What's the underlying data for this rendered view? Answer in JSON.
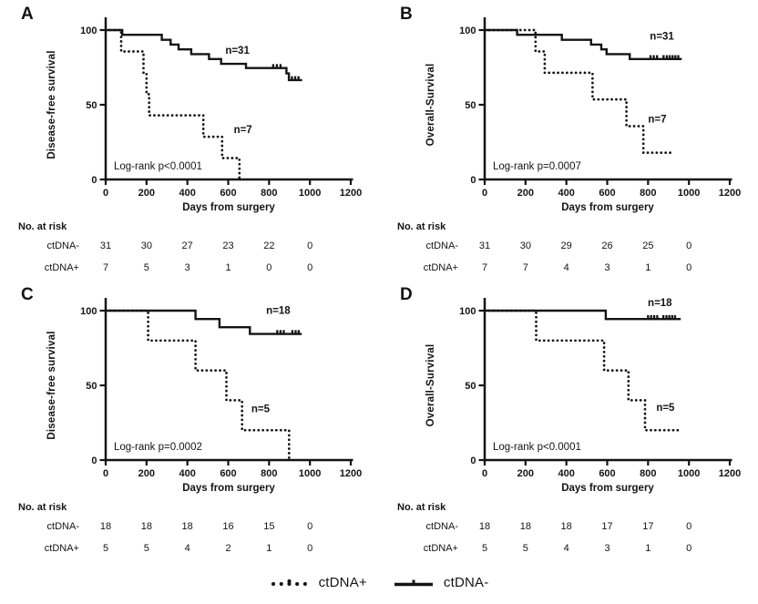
{
  "figure": {
    "background": "#ffffff",
    "ink": "#141414"
  },
  "legend": {
    "items": [
      {
        "symbol": "dotted-line",
        "label": "ctDNA+"
      },
      {
        "symbol": "solid-line",
        "label": "ctDNA-"
      }
    ]
  },
  "chart_data": {
    "type": "line",
    "subtype": "kaplan-meier-step",
    "xlabel": "Days from surgery",
    "x_ticks": [
      0,
      200,
      400,
      600,
      800,
      1000,
      1200
    ],
    "y_ticks": [
      0,
      50,
      100
    ],
    "xlim": [
      0,
      1200
    ],
    "ylim": [
      0,
      100
    ],
    "grid": false,
    "panels": [
      {
        "letter": "A",
        "ylabel": "Disease-free survival",
        "logrank": "Log-rank p<0.0001",
        "series": [
          {
            "name": "ctDNA-",
            "style": "solid",
            "n_label": "n=31",
            "n_label_at": [
              645,
              84
            ],
            "points": [
              [
                0,
                100
              ],
              [
                81,
                100
              ],
              [
                81,
                96.8
              ],
              [
                275,
                96.8
              ],
              [
                275,
                93.5
              ],
              [
                318,
                93.5
              ],
              [
                318,
                90.3
              ],
              [
                357,
                90.3
              ],
              [
                357,
                87.1
              ],
              [
                419,
                87.1
              ],
              [
                419,
                83.9
              ],
              [
                506,
                83.9
              ],
              [
                506,
                80.6
              ],
              [
                565,
                80.6
              ],
              [
                565,
                77.4
              ],
              [
                687,
                77.4
              ],
              [
                687,
                74.6
              ],
              [
                885,
                74.6
              ],
              [
                885,
                71
              ],
              [
                897,
                71
              ],
              [
                897,
                66.5
              ],
              [
                962,
                66.5
              ]
            ],
            "censors": [
              820,
              838,
              856,
              912,
              928,
              944
            ]
          },
          {
            "name": "ctDNA+",
            "style": "dotted",
            "n_label": "n=7",
            "n_label_at": [
              672,
              31
            ],
            "points": [
              [
                0,
                100
              ],
              [
                76,
                100
              ],
              [
                76,
                85.7
              ],
              [
                185,
                85.7
              ],
              [
                185,
                71.4
              ],
              [
                200,
                71.4
              ],
              [
                200,
                57.1
              ],
              [
                213,
                57.1
              ],
              [
                213,
                42.9
              ],
              [
                478,
                42.9
              ],
              [
                478,
                28.6
              ],
              [
                570,
                28.6
              ],
              [
                570,
                14.3
              ],
              [
                655,
                14.3
              ],
              [
                655,
                0
              ]
            ],
            "censors": []
          }
        ],
        "risk_table": {
          "header": "No. at risk",
          "time_points": [
            0,
            200,
            400,
            600,
            800,
            1000
          ],
          "rows": [
            {
              "label": "ctDNA-",
              "values": [
                "31",
                "30",
                "27",
                "23",
                "22",
                "0"
              ]
            },
            {
              "label": "ctDNA+",
              "values": [
                "7",
                "5",
                "3",
                "1",
                "0",
                "0"
              ]
            }
          ]
        }
      },
      {
        "letter": "B",
        "ylabel": "Overall-Survival",
        "logrank": "Log-rank p=0.0007",
        "series": [
          {
            "name": "ctDNA-",
            "style": "solid",
            "n_label": "n=31",
            "n_label_at": [
              868,
              93.5
            ],
            "points": [
              [
                0,
                100
              ],
              [
                159,
                100
              ],
              [
                159,
                96.8
              ],
              [
                378,
                96.8
              ],
              [
                378,
                93.5
              ],
              [
                521,
                93.5
              ],
              [
                521,
                90.3
              ],
              [
                571,
                90.3
              ],
              [
                571,
                87.1
              ],
              [
                597,
                87.1
              ],
              [
                597,
                83.9
              ],
              [
                710,
                83.9
              ],
              [
                710,
                80.6
              ],
              [
                965,
                80.6
              ]
            ],
            "censors": [
              812,
              828,
              844,
              876,
              892,
              906,
              920,
              934,
              948
            ]
          },
          {
            "name": "ctDNA+",
            "style": "dotted",
            "n_label": "n=7",
            "n_label_at": [
              845,
              38
            ],
            "points": [
              [
                0,
                100
              ],
              [
                249,
                100
              ],
              [
                249,
                85.7
              ],
              [
                294,
                85.7
              ],
              [
                294,
                71.4
              ],
              [
                528,
                71.4
              ],
              [
                528,
                53.6
              ],
              [
                694,
                53.6
              ],
              [
                694,
                35.7
              ],
              [
                777,
                35.7
              ],
              [
                777,
                17.9
              ],
              [
                925,
                17.9
              ]
            ],
            "censors": []
          }
        ],
        "risk_table": {
          "header": "No. at risk",
          "time_points": [
            0,
            200,
            400,
            600,
            800,
            1000
          ],
          "rows": [
            {
              "label": "ctDNA-",
              "values": [
                "31",
                "30",
                "29",
                "26",
                "25",
                "0"
              ]
            },
            {
              "label": "ctDNA+",
              "values": [
                "7",
                "7",
                "4",
                "3",
                "1",
                "0"
              ]
            }
          ]
        }
      },
      {
        "letter": "C",
        "ylabel": "Disease-free survival",
        "logrank": "Log-rank p=0.0002",
        "series": [
          {
            "name": "ctDNA-",
            "style": "solid",
            "n_label": "n=18",
            "n_label_at": [
              845,
              98
            ],
            "points": [
              [
                0,
                100
              ],
              [
                440,
                100
              ],
              [
                440,
                94.4
              ],
              [
                557,
                94.4
              ],
              [
                557,
                88.9
              ],
              [
                706,
                88.9
              ],
              [
                706,
                84.4
              ],
              [
                960,
                84.4
              ]
            ],
            "censors": [
              840,
              856,
              872,
              914,
              930,
              945
            ]
          },
          {
            "name": "ctDNA+",
            "style": "dotted",
            "n_label": "n=5",
            "n_label_at": [
              758,
              32
            ],
            "points": [
              [
                0,
                100
              ],
              [
                208,
                100
              ],
              [
                208,
                80
              ],
              [
                440,
                80
              ],
              [
                440,
                60
              ],
              [
                591,
                60
              ],
              [
                591,
                40
              ],
              [
                668,
                40
              ],
              [
                668,
                20
              ],
              [
                898,
                20
              ],
              [
                898,
                0
              ]
            ],
            "censors": []
          }
        ],
        "risk_table": {
          "header": "No. at risk",
          "time_points": [
            0,
            200,
            400,
            600,
            800,
            1000
          ],
          "rows": [
            {
              "label": "ctDNA-",
              "values": [
                "18",
                "18",
                "18",
                "16",
                "15",
                "0"
              ]
            },
            {
              "label": "ctDNA+",
              "values": [
                "5",
                "5",
                "4",
                "2",
                "1",
                "0"
              ]
            }
          ]
        }
      },
      {
        "letter": "D",
        "ylabel": "Overall-Survival",
        "logrank": "Log-rank p<0.0001",
        "series": [
          {
            "name": "ctDNA-",
            "style": "solid",
            "n_label": "n=18",
            "n_label_at": [
              858,
              103
            ],
            "points": [
              [
                0,
                100
              ],
              [
                593,
                100
              ],
              [
                593,
                94.4
              ],
              [
                960,
                94.4
              ]
            ],
            "censors": [
              800,
              815,
              830,
              845,
              875,
              890,
              904,
              918,
              932
            ]
          },
          {
            "name": "ctDNA+",
            "style": "dotted",
            "n_label": "n=5",
            "n_label_at": [
              885,
              33
            ],
            "points": [
              [
                0,
                100
              ],
              [
                252,
                100
              ],
              [
                252,
                80
              ],
              [
                585,
                80
              ],
              [
                585,
                60
              ],
              [
                704,
                60
              ],
              [
                704,
                40
              ],
              [
                785,
                40
              ],
              [
                785,
                20
              ],
              [
                948,
                20
              ]
            ],
            "censors": []
          }
        ],
        "risk_table": {
          "header": "No. at risk",
          "time_points": [
            0,
            200,
            400,
            600,
            800,
            1000
          ],
          "rows": [
            {
              "label": "ctDNA-",
              "values": [
                "18",
                "18",
                "18",
                "17",
                "17",
                "0"
              ]
            },
            {
              "label": "ctDNA+",
              "values": [
                "5",
                "5",
                "4",
                "3",
                "1",
                "0"
              ]
            }
          ]
        }
      }
    ]
  }
}
